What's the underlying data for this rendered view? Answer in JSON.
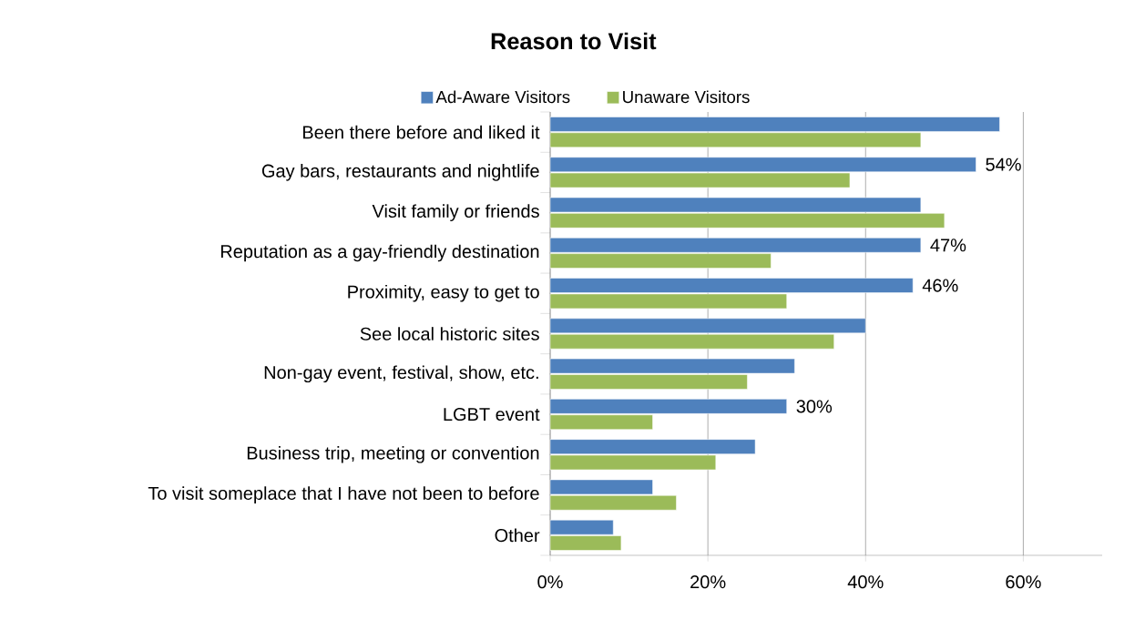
{
  "chart_data": {
    "type": "bar",
    "orientation": "horizontal",
    "title": "Reason to Visit",
    "categories": [
      "Been there before and liked it",
      "Gay bars, restaurants and nightlife",
      "Visit family or friends",
      "Reputation as a gay-friendly destination",
      "Proximity, easy to get to",
      "See local historic sites",
      "Non-gay event, festival, show, etc.",
      "LGBT event",
      "Business trip, meeting or convention",
      "To visit someplace that I have not been to before",
      "Other"
    ],
    "series": [
      {
        "name": "Ad-Aware Visitors",
        "color": "#4f81bd",
        "values": [
          57,
          54,
          47,
          47,
          46,
          40,
          31,
          30,
          26,
          13,
          8
        ],
        "value_labels": [
          null,
          "54%",
          null,
          "47%",
          "46%",
          null,
          null,
          "30%",
          null,
          null,
          null
        ]
      },
      {
        "name": "Unaware Visitors",
        "color": "#9bbb59",
        "values": [
          47,
          38,
          50,
          28,
          30,
          36,
          25,
          13,
          21,
          16,
          9
        ]
      }
    ],
    "xlim": [
      0,
      70
    ],
    "xticks": [
      {
        "value": 0,
        "label": "0%"
      },
      {
        "value": 20,
        "label": "20%"
      },
      {
        "value": 40,
        "label": "40%"
      },
      {
        "value": 60,
        "label": "60%"
      }
    ],
    "grid": "x",
    "legend": "top"
  }
}
